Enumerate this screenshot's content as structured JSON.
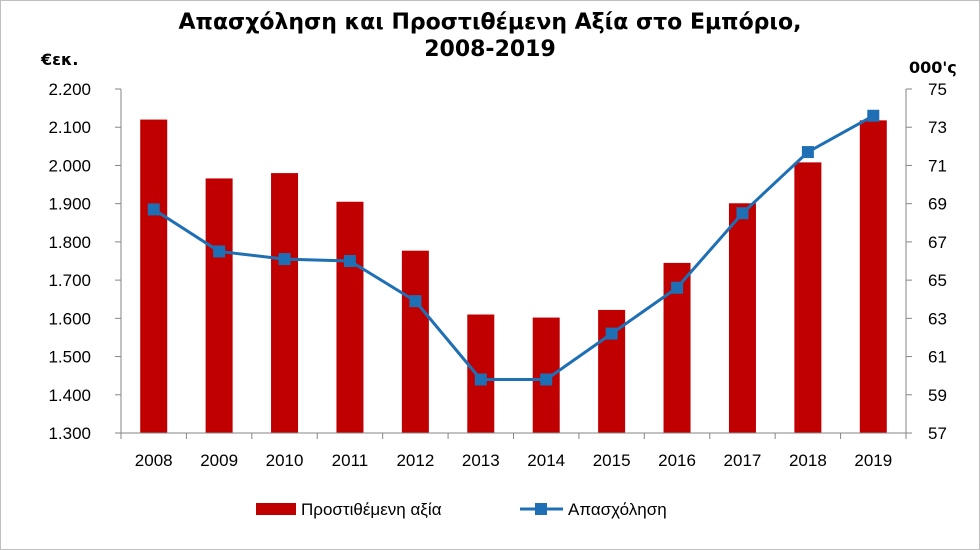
{
  "chart_data": {
    "type": "bar+line",
    "title": [
      "Απασχόληση και Προστιθέμενη Αξία στο Εμπόριο,",
      "2008-2019"
    ],
    "ylabel_left": "€εκ.",
    "ylabel_right": "000'ς",
    "categories": [
      "2008",
      "2009",
      "2010",
      "2011",
      "2012",
      "2013",
      "2014",
      "2015",
      "2016",
      "2017",
      "2018",
      "2019"
    ],
    "series": [
      {
        "name": "Προστιθέμενη αξία",
        "kind": "bar",
        "axis": "left",
        "color": "#c00000",
        "values": [
          2120,
          1966,
          1980,
          1905,
          1777,
          1610,
          1602,
          1622,
          1745,
          1901,
          2008,
          2118
        ]
      },
      {
        "name": "Απασχόληση",
        "kind": "line",
        "axis": "right",
        "color": "#1f6fb4",
        "values": [
          68.7,
          66.5,
          66.1,
          66.0,
          63.9,
          59.8,
          59.8,
          62.2,
          64.6,
          68.5,
          71.7,
          73.6
        ]
      }
    ],
    "ylim_left": [
      1300,
      2200
    ],
    "yticks_left": [
      "1.300",
      "1.400",
      "1.500",
      "1.600",
      "1.700",
      "1.800",
      "1.900",
      "2.000",
      "2.100",
      "2.200"
    ],
    "ylim_right": [
      57,
      75
    ],
    "yticks_right": [
      "57",
      "59",
      "61",
      "63",
      "65",
      "67",
      "69",
      "71",
      "73",
      "75"
    ],
    "grid": false,
    "legend": "bottom"
  }
}
